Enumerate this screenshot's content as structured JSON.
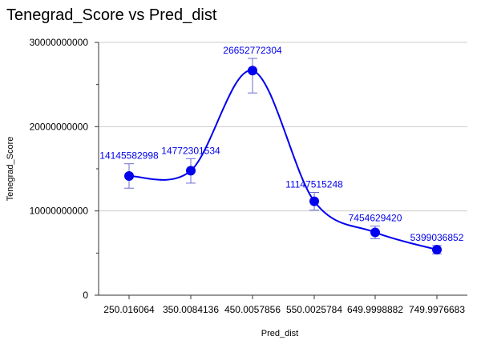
{
  "chart_data": {
    "type": "line",
    "title": "Tenegrad_Score vs Pred_dist",
    "xlabel": "Pred_dist",
    "ylabel": "Tenegrad_Score",
    "x": [
      "250.016064",
      "350.0084136",
      "450.0057856",
      "550.0025784",
      "649.9998882",
      "749.9976683"
    ],
    "values": [
      14145582998,
      14772301534,
      26652772304,
      11147515248,
      7454629420,
      5399036852
    ],
    "data_labels": [
      "14145582998",
      "14772301534",
      "26652772304",
      "11147515248",
      "7454629420",
      "5399036852"
    ],
    "error_low": [
      12700000000,
      13300000000,
      24000000000,
      10100000000,
      6700000000,
      4900000000
    ],
    "error_high": [
      15600000000,
      16200000000,
      28100000000,
      12200000000,
      8200000000,
      5900000000
    ],
    "ylim": [
      0,
      30000000000
    ],
    "yticks": [
      0,
      10000000000,
      20000000000,
      30000000000
    ],
    "ytick_labels": [
      "0",
      "10000000000",
      "20000000000",
      "30000000000"
    ],
    "grid": true,
    "smooth": true,
    "colors": {
      "series": "#0000ee",
      "error_bar": "#6b6bd6",
      "grid": "#cccccc",
      "axis": "#333333"
    }
  }
}
